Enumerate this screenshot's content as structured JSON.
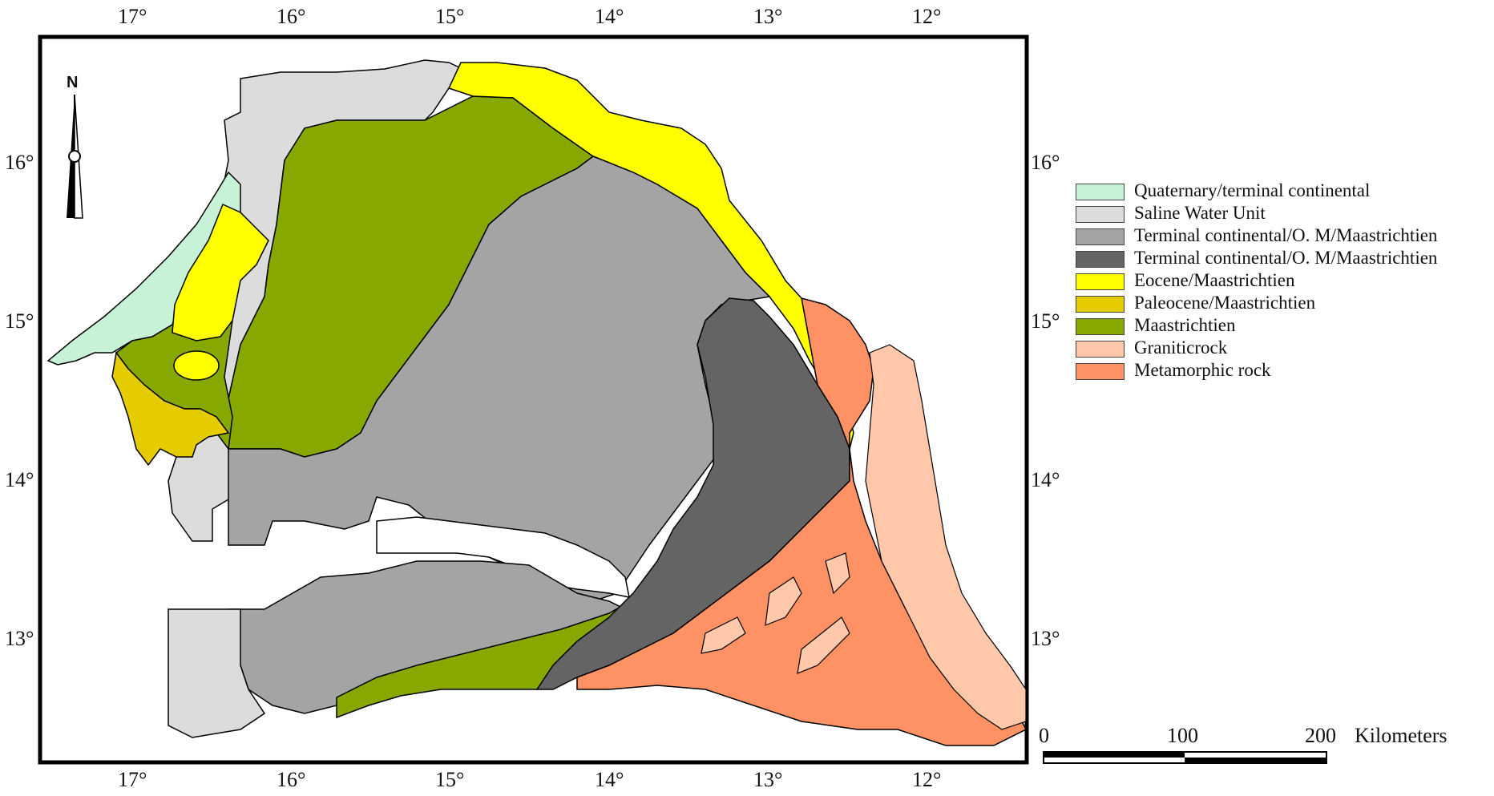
{
  "map": {
    "top_ticks": [
      "17°",
      "16°",
      "15°",
      "14°",
      "13°",
      "12°"
    ],
    "bottom_ticks": [
      "17°",
      "16°",
      "15°",
      "14°",
      "13°",
      "12°"
    ],
    "left_ticks": [
      "16°",
      "15°",
      "14°",
      "13°"
    ],
    "right_ticks": [
      "16°",
      "15°",
      "14°",
      "13°"
    ],
    "north_label": "N"
  },
  "legend": {
    "items": [
      {
        "label": "Quaternary/terminal continental",
        "color": "#c8f2d6"
      },
      {
        "label": "Saline Water Unit",
        "color": "#dcdcdc"
      },
      {
        "label": "Terminal continental/O. M/Maastrichtien",
        "color": "#a4a4a4"
      },
      {
        "label": "Terminal continental/O. M/Maastrichtien",
        "color": "#646464"
      },
      {
        "label": "Eocene/Maastrichtien",
        "color": "#ffff00"
      },
      {
        "label": "Paleocene/Maastrichtien",
        "color": "#e5cc00"
      },
      {
        "label": "Maastrichtien",
        "color": "#86a800"
      },
      {
        "label": "Graniticrock",
        "color": "#ffc8aa"
      },
      {
        "label": "Metamorphic rock",
        "color": "#ff9265"
      }
    ]
  },
  "scale_bar": {
    "labels": [
      "0",
      "100",
      "200"
    ],
    "unit": "Kilometers"
  }
}
